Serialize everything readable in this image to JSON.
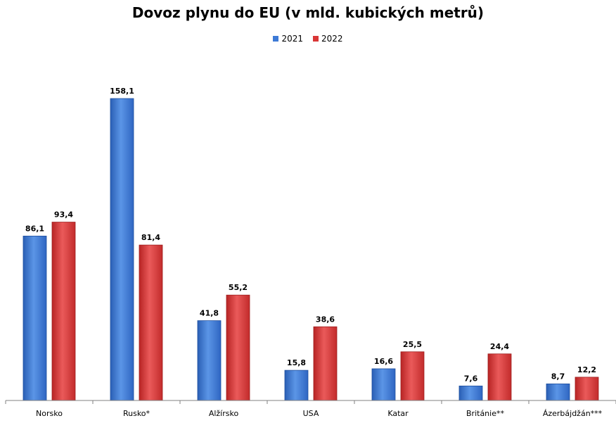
{
  "chart_data": {
    "type": "bar",
    "title": "Dovoz plynu do EU (v mld. kubických metrů)",
    "categories": [
      "Norsko",
      "Rusko*",
      "Alžírsko",
      "USA",
      "Katar",
      "Británie**",
      "Ázerbájdžán***"
    ],
    "series": [
      {
        "name": "2021",
        "values": [
          86.1,
          158.1,
          41.8,
          15.8,
          16.6,
          7.6,
          8.7
        ],
        "labels": [
          "86,1",
          "158,1",
          "41,8",
          "15,8",
          "16,6",
          "7,6",
          "8,7"
        ]
      },
      {
        "name": "2022",
        "values": [
          93.4,
          81.4,
          55.2,
          38.6,
          25.5,
          24.4,
          12.2
        ],
        "labels": [
          "93,4",
          "81,4",
          "55,2",
          "38,6",
          "25,5",
          "24,4",
          "12,2"
        ]
      }
    ],
    "ylim": [
      0,
      158.1
    ],
    "grid": false,
    "legend_position": "top",
    "colors": {
      "2021": "#3d7ad6",
      "2022": "#d93636"
    }
  }
}
